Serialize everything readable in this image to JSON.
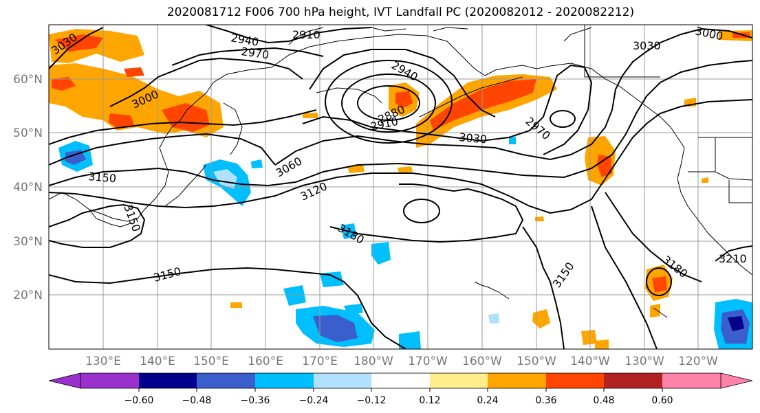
{
  "title": "2020081712 F006 700 hPa height, IVT Landfall PC (2020082012 - 2020082212)",
  "colors": {
    "land_outline": "#000000",
    "grid": "#999999",
    "label_gray": "#777777"
  },
  "lat_labels": [
    "60°N",
    "50°N",
    "40°N",
    "30°N",
    "20°N"
  ],
  "lon_labels": [
    "130°E",
    "140°E",
    "150°E",
    "160°E",
    "170°E",
    "180°W",
    "170°W",
    "160°W",
    "150°W",
    "140°W",
    "130°W",
    "120°W"
  ],
  "colorbar": {
    "colors": [
      "#9932cc",
      "#00008b",
      "#3a5fcd",
      "#00bfff",
      "#b0e2ff",
      "#ffffff",
      "#ffec8b",
      "#ffa500",
      "#ff4500",
      "#b22222",
      "#ff82ab"
    ],
    "tick_labels": [
      "−0.60",
      "−0.48",
      "−0.36",
      "−0.24",
      "−0.12",
      "0.12",
      "0.24",
      "0.36",
      "0.48",
      "0.60"
    ]
  },
  "contour_labels": [
    "3030",
    "2940",
    "2910",
    "2970",
    "3000",
    "2940",
    "2880",
    "2910",
    "3030",
    "2970",
    "3000",
    "3030",
    "3060",
    "3150",
    "3120",
    "3180",
    "3150",
    "3150",
    "3180",
    "3210",
    "3150"
  ]
}
